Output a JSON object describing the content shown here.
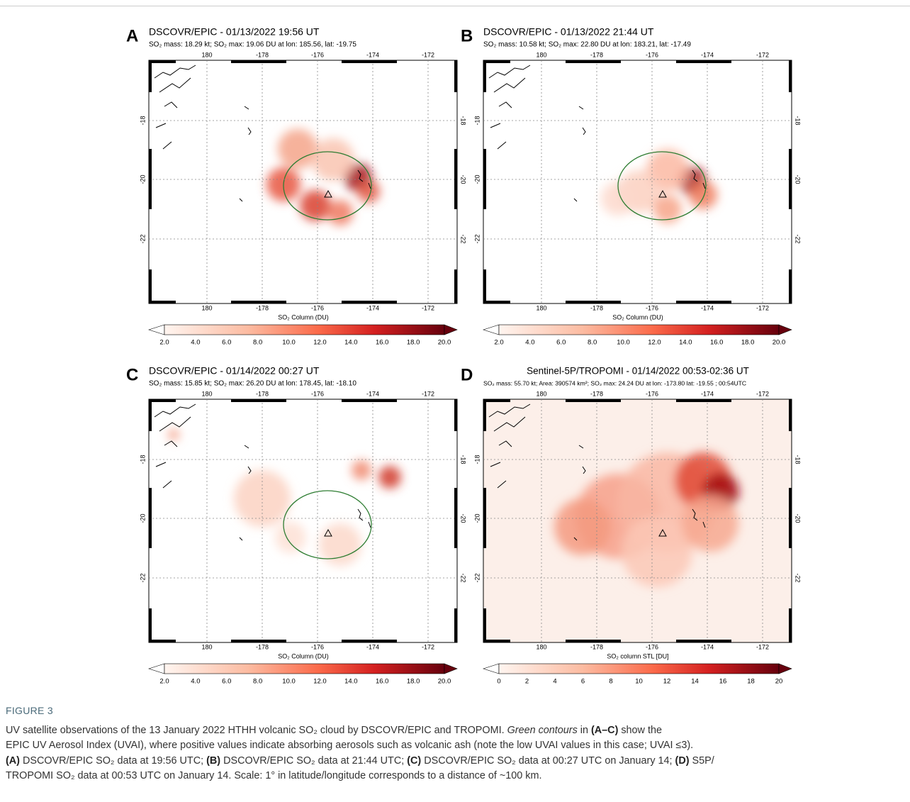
{
  "panels": [
    {
      "letter": "A",
      "title": "DSCOVR/EPIC - 01/13/2022 19:56 UT",
      "subtitle": "SO₂ mass: 18.29 kt; SO₂ max: 19.06 DU at lon: 185.56, lat: -19.75",
      "xticks": [
        "180",
        "-178",
        "-176",
        "-174",
        "-172"
      ],
      "yticks": [
        "-18",
        "-20",
        "-22"
      ],
      "colorbar_label": "SO₂ Column (DU)",
      "colorbar_ticks": [
        "2.0",
        "4.0",
        "6.0",
        "8.0",
        "10.0",
        "12.0",
        "14.0",
        "16.0",
        "18.0",
        "20.0"
      ]
    },
    {
      "letter": "B",
      "title": "DSCOVR/EPIC - 01/13/2022 21:44 UT",
      "subtitle": "SO₂ mass: 10.58 kt; SO₂ max: 22.80 DU at lon: 183.21, lat: -17.49",
      "xticks": [
        "180",
        "-178",
        "-176",
        "-174",
        "-172"
      ],
      "yticks": [
        "-18",
        "-20",
        "-22"
      ],
      "colorbar_label": "SO₂ Column (DU)",
      "colorbar_ticks": [
        "2.0",
        "4.0",
        "6.0",
        "8.0",
        "10.0",
        "12.0",
        "14.0",
        "16.0",
        "18.0",
        "20.0"
      ]
    },
    {
      "letter": "C",
      "title": "DSCOVR/EPIC - 01/14/2022 00:27 UT",
      "subtitle": "SO₂ mass: 15.85 kt; SO₂ max: 26.20 DU at lon: 178.45, lat: -18.10",
      "xticks": [
        "180",
        "-178",
        "-176",
        "-174",
        "-172"
      ],
      "yticks": [
        "-18",
        "-20",
        "-22"
      ],
      "colorbar_label": "SO₂ Column (DU)",
      "colorbar_ticks": [
        "2.0",
        "4.0",
        "6.0",
        "8.0",
        "10.0",
        "12.0",
        "14.0",
        "16.0",
        "18.0",
        "20.0"
      ]
    },
    {
      "letter": "D",
      "title": "Sentinel-5P/TROPOMI - 01/14/2022 00:53-02:36 UT",
      "subtitle": "SO₂ mass: 55.70 kt; Area: 390574 km²; SO₂ max: 24.24 DU at lon: -173.80 lat: -19.55 ; 00:54UTC",
      "xticks": [
        "180",
        "-178",
        "-176",
        "-174",
        "-172"
      ],
      "yticks": [
        "-18",
        "-20",
        "-22"
      ],
      "colorbar_label": "SO₂ column STL [DU]",
      "colorbar_ticks": [
        "0",
        "2",
        "4",
        "6",
        "8",
        "10",
        "12",
        "14",
        "16",
        "18",
        "20"
      ]
    }
  ],
  "caption": {
    "label": "FIGURE 3",
    "lines": [
      [
        "UV satellite observations of the 13 January 2022 HTHH volcanic SO₂ cloud by DSCOVR/EPIC and TROPOMI. ",
        "Green contours",
        " in ",
        "(A–C)",
        " show the"
      ],
      [
        "EPIC UV Aerosol Index (UVAI), where positive values indicate absorbing aerosols such as volcanic ash (note the low UVAI values in this case; UVAI ≤3)."
      ],
      [
        "(A)",
        " DSCOVR/EPIC SO₂ data at 19:56 UTC; ",
        "(B)",
        " DSCOVR/EPIC SO₂ data at 21:44 UTC; ",
        "(C)",
        " DSCOVR/EPIC SO₂ data at 00:27 UTC on January 14; ",
        "(D)",
        " S5P/"
      ],
      [
        "TROPOMI SO₂ data at 00:53 UTC on January 14. Scale: 1° in latitude/longitude corresponds to a distance of ~100 km."
      ]
    ]
  }
}
